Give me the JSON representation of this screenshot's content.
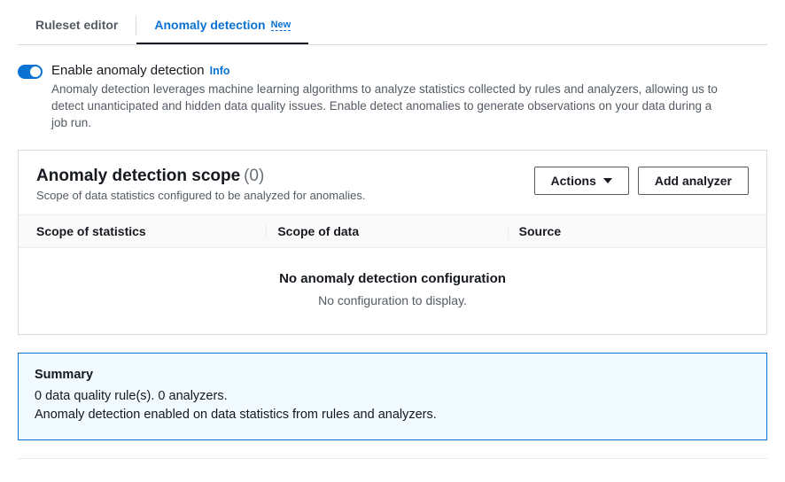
{
  "tabs": {
    "ruleset": "Ruleset editor",
    "anomaly": "Anomaly detection",
    "new_badge": "New"
  },
  "enable": {
    "label": "Enable anomaly detection",
    "info": "Info",
    "description": "Anomaly detection leverages machine learning algorithms to analyze statistics collected by rules and analyzers, allowing us to detect unanticipated and hidden data quality issues. Enable detect anomalies to generate observations on your data during a job run.",
    "toggled": true
  },
  "scope_panel": {
    "title": "Anomaly detection scope",
    "count": "(0)",
    "subtitle": "Scope of data statistics configured to be analyzed for anomalies.",
    "actions_label": "Actions",
    "add_label": "Add analyzer",
    "columns": {
      "stats": "Scope of statistics",
      "data": "Scope of data",
      "source": "Source"
    },
    "empty_title": "No anomaly detection configuration",
    "empty_sub": "No configuration to display."
  },
  "summary": {
    "title": "Summary",
    "line1": "0 data quality rule(s). 0 analyzers.",
    "line2": "Anomaly detection enabled on data statistics from rules and analyzers."
  }
}
